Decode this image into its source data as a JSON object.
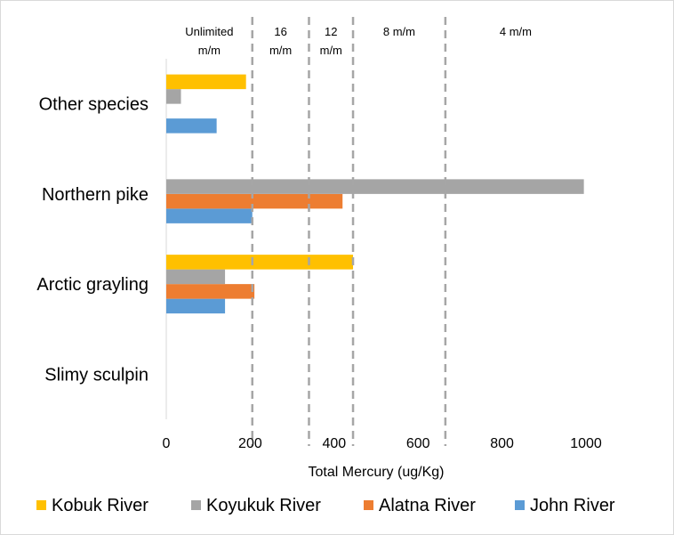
{
  "chart_data": {
    "type": "bar",
    "orientation": "horizontal",
    "categories": [
      "Slimy sculpin",
      "Arctic grayling",
      "Northern pike",
      "Other species"
    ],
    "series": [
      {
        "name": "John River",
        "color": "#5b9bd5",
        "values": [
          null,
          140,
          205,
          120
        ]
      },
      {
        "name": "Alatna River",
        "color": "#ed7d31",
        "values": [
          null,
          210,
          420,
          null
        ]
      },
      {
        "name": "Koyukuk River",
        "color": "#a5a5a5",
        "values": [
          null,
          140,
          995,
          35
        ]
      },
      {
        "name": "Kobuk River",
        "color": "#ffc000",
        "values": [
          null,
          445,
          null,
          190
        ]
      }
    ],
    "xlabel": "Total Mercury (ug/Kg)",
    "ylabel": "",
    "xlim": [
      0,
      1000
    ],
    "xticks": [
      "0",
      "200",
      "400",
      "600",
      "800",
      "1000"
    ],
    "grid": false,
    "legend_position": "bottom",
    "thresholds": [
      {
        "value": 205,
        "color": "#a6a6a6",
        "style": "dashed"
      },
      {
        "value": 340,
        "color": "#a6a6a6",
        "style": "dashed"
      },
      {
        "value": 445,
        "color": "#a6a6a6",
        "style": "dashed"
      },
      {
        "value": 665,
        "color": "#a6a6a6",
        "style": "dashed"
      }
    ],
    "zones": [
      {
        "label_line1": "Unlimited",
        "label_line2": "m/m",
        "from": 0,
        "to": 205
      },
      {
        "label_line1": "16",
        "label_line2": "m/m",
        "from": 205,
        "to": 340
      },
      {
        "label_line1": "12",
        "label_line2": "m/m",
        "from": 340,
        "to": 445
      },
      {
        "label_line1": "8 m/m",
        "label_line2": "",
        "from": 445,
        "to": 665
      },
      {
        "label_line1": "4 m/m",
        "label_line2": "",
        "from": 665,
        "to": 1000
      }
    ]
  }
}
